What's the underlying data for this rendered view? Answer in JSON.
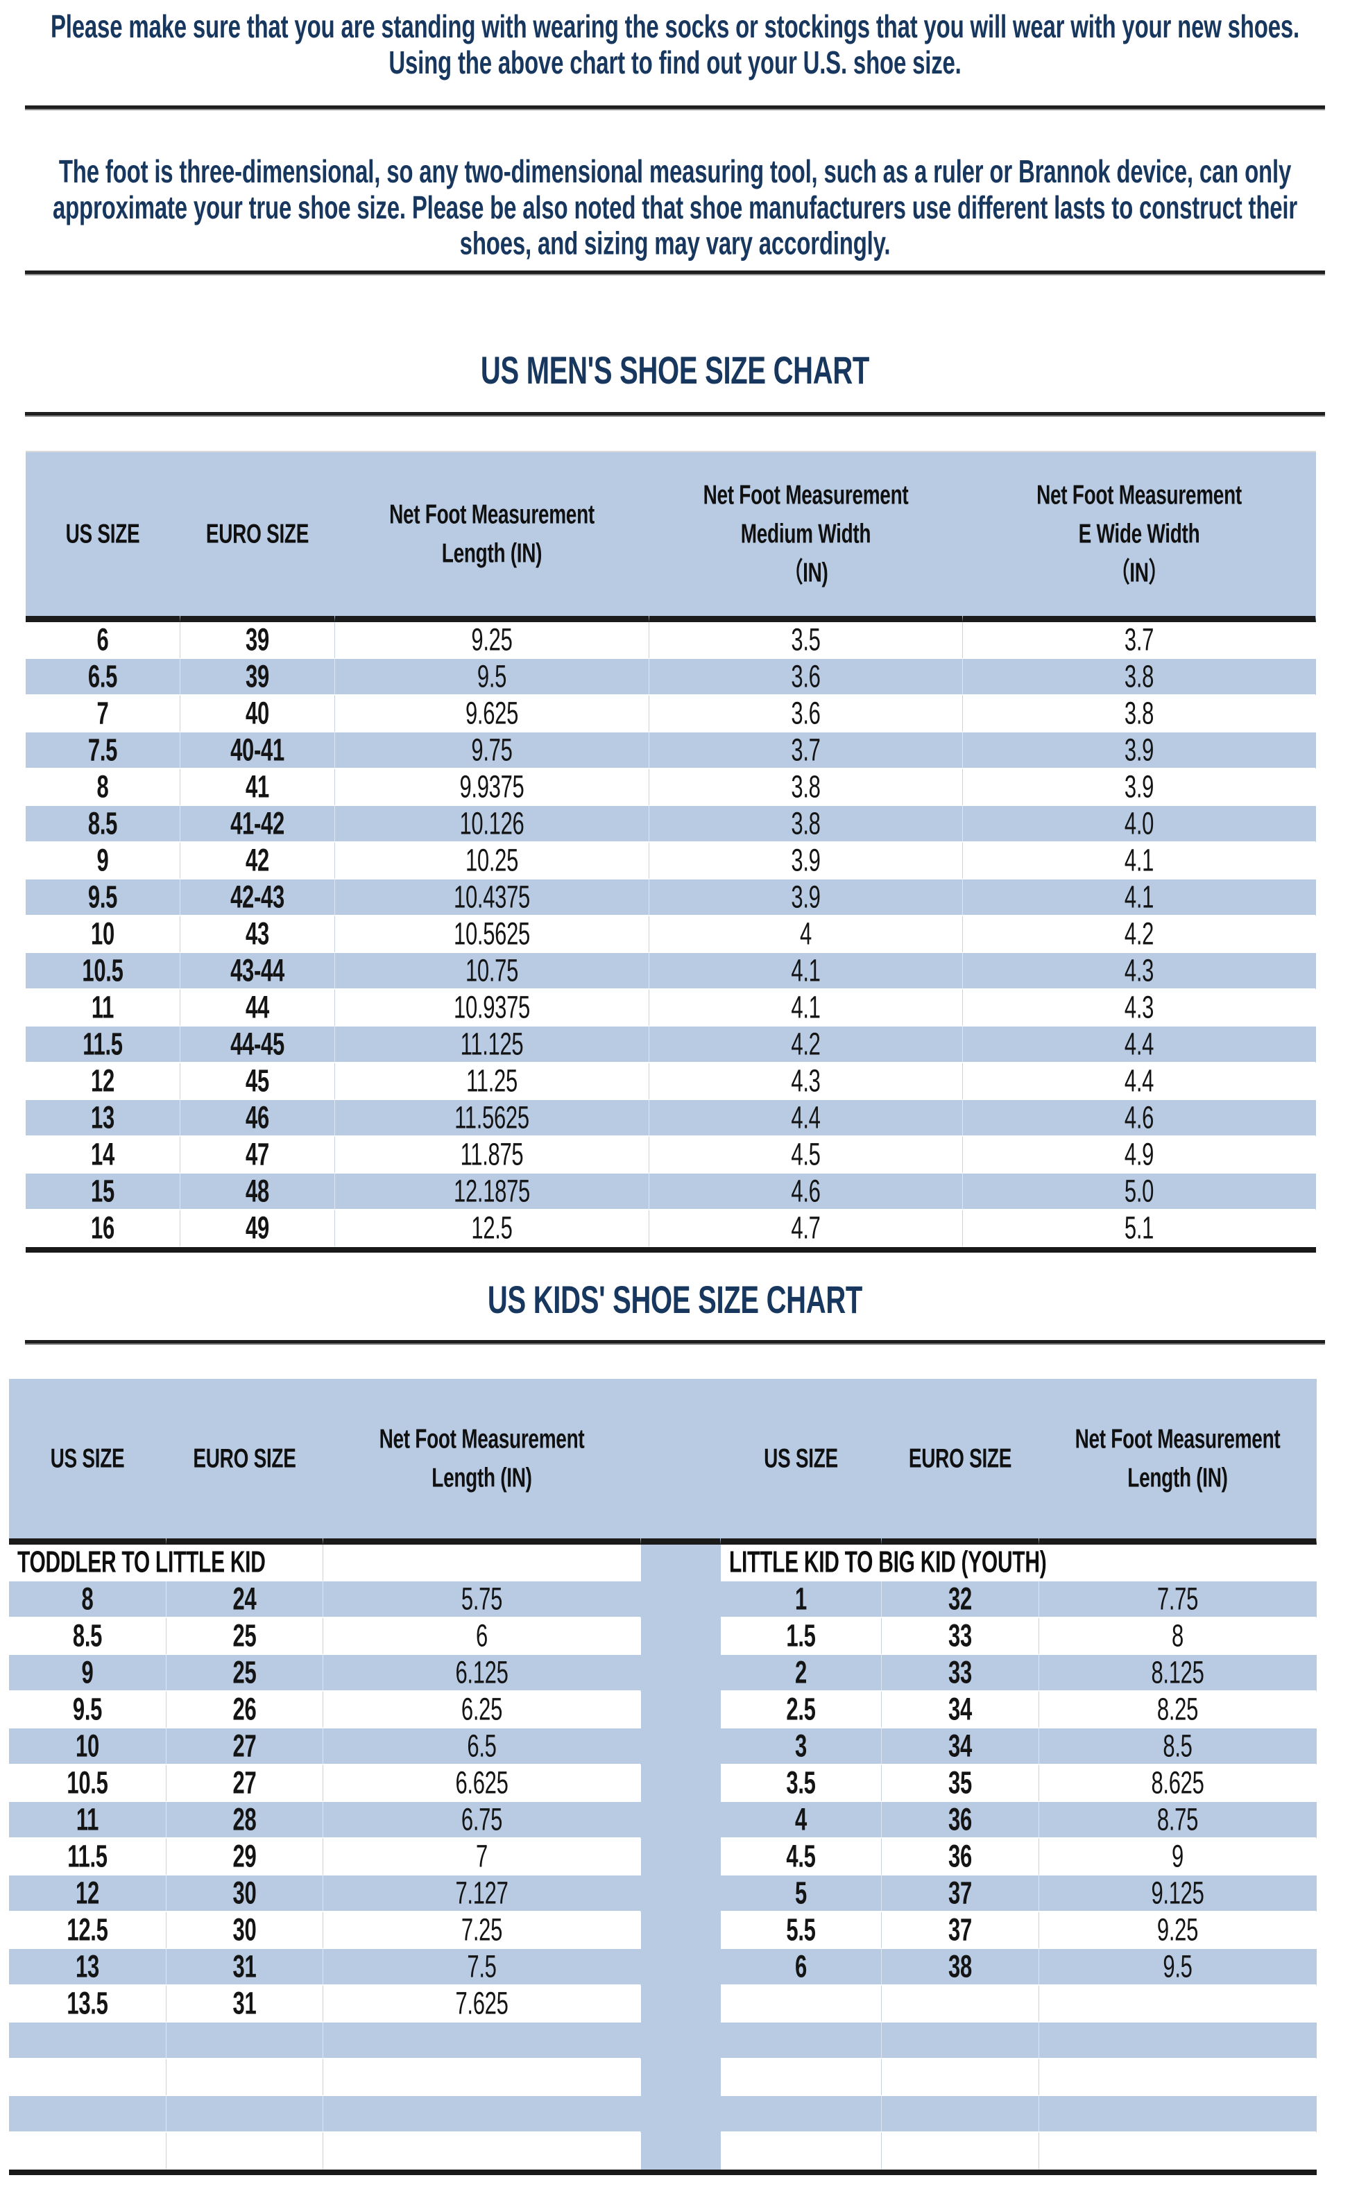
{
  "colors": {
    "row_blue": "#b8cbe3",
    "title_navy": "#17375e",
    "rule_dark": "#1f1f1f",
    "cell_border": "#c6d2e4"
  },
  "intro": {
    "para1": "Please make sure that you are standing with wearing the socks or stockings that you will wear with your new shoes.\nUsing the above chart to find out your U.S. shoe size.",
    "para2": "The foot is three-dimensional, so any two-dimensional measuring tool, such as a ruler or Brannok device, can only\napproximate your true shoe size. Please be also noted that shoe manufacturers use different lasts to construct their\nshoes, and sizing may vary accordingly."
  },
  "mens_chart": {
    "title": "US MEN'S SHOE SIZE CHART",
    "headers": [
      "US SIZE",
      "EURO SIZE",
      "Net Foot Measurement\nLength (IN)",
      "Net Foot Measurement\nMedium Width\n（IN)",
      "Net Foot Measurement\nE Wide Width\n（IN）"
    ],
    "rows": [
      [
        "6",
        "39",
        "9.25",
        "3.5",
        "3.7"
      ],
      [
        "6.5",
        "39",
        "9.5",
        "3.6",
        "3.8"
      ],
      [
        "7",
        "40",
        "9.625",
        "3.6",
        "3.8"
      ],
      [
        "7.5",
        "40-41",
        "9.75",
        "3.7",
        "3.9"
      ],
      [
        "8",
        "41",
        "9.9375",
        "3.8",
        "3.9"
      ],
      [
        "8.5",
        "41-42",
        "10.126",
        "3.8",
        "4.0"
      ],
      [
        "9",
        "42",
        "10.25",
        "3.9",
        "4.1"
      ],
      [
        "9.5",
        "42-43",
        "10.4375",
        "3.9",
        "4.1"
      ],
      [
        "10",
        "43",
        "10.5625",
        "4",
        "4.2"
      ],
      [
        "10.5",
        "43-44",
        "10.75",
        "4.1",
        "4.3"
      ],
      [
        "11",
        "44",
        "10.9375",
        "4.1",
        "4.3"
      ],
      [
        "11.5",
        "44-45",
        "11.125",
        "4.2",
        "4.4"
      ],
      [
        "12",
        "45",
        "11.25",
        "4.3",
        "4.4"
      ],
      [
        "13",
        "46",
        "11.5625",
        "4.4",
        "4.6"
      ],
      [
        "14",
        "47",
        "11.875",
        "4.5",
        "4.9"
      ],
      [
        "15",
        "48",
        "12.1875",
        "4.6",
        "5.0"
      ],
      [
        "16",
        "49",
        "12.5",
        "4.7",
        "5.1"
      ]
    ]
  },
  "kids_chart": {
    "title": "US KIDS' SHOE SIZE CHART",
    "headers": [
      "US SIZE",
      "EURO SIZE",
      "Net Foot Measurement\nLength (IN)",
      "US SIZE",
      "EURO SIZE",
      "Net Foot Measurement\nLength (IN)"
    ],
    "section_left": "TODDLER TO LITTLE KID",
    "section_right": "LITTLE KID TO BIG KID (YOUTH)",
    "body_row_count": 16,
    "left_rows": [
      [
        "8",
        "24",
        "5.75"
      ],
      [
        "8.5",
        "25",
        "6"
      ],
      [
        "9",
        "25",
        "6.125"
      ],
      [
        "9.5",
        "26",
        "6.25"
      ],
      [
        "10",
        "27",
        "6.5"
      ],
      [
        "10.5",
        "27",
        "6.625"
      ],
      [
        "11",
        "28",
        "6.75"
      ],
      [
        "11.5",
        "29",
        "7"
      ],
      [
        "12",
        "30",
        "7.127"
      ],
      [
        "12.5",
        "30",
        "7.25"
      ],
      [
        "13",
        "31",
        "7.5"
      ],
      [
        "13.5",
        "31",
        "7.625"
      ]
    ],
    "right_rows": [
      [
        "1",
        "32",
        "7.75"
      ],
      [
        "1.5",
        "33",
        "8"
      ],
      [
        "2",
        "33",
        "8.125"
      ],
      [
        "2.5",
        "34",
        "8.25"
      ],
      [
        "3",
        "34",
        "8.5"
      ],
      [
        "3.5",
        "35",
        "8.625"
      ],
      [
        "4",
        "36",
        "8.75"
      ],
      [
        "4.5",
        "36",
        "9"
      ],
      [
        "5",
        "37",
        "9.125"
      ],
      [
        "5.5",
        "37",
        "9.25"
      ],
      [
        "6",
        "38",
        "9.5"
      ]
    ]
  }
}
